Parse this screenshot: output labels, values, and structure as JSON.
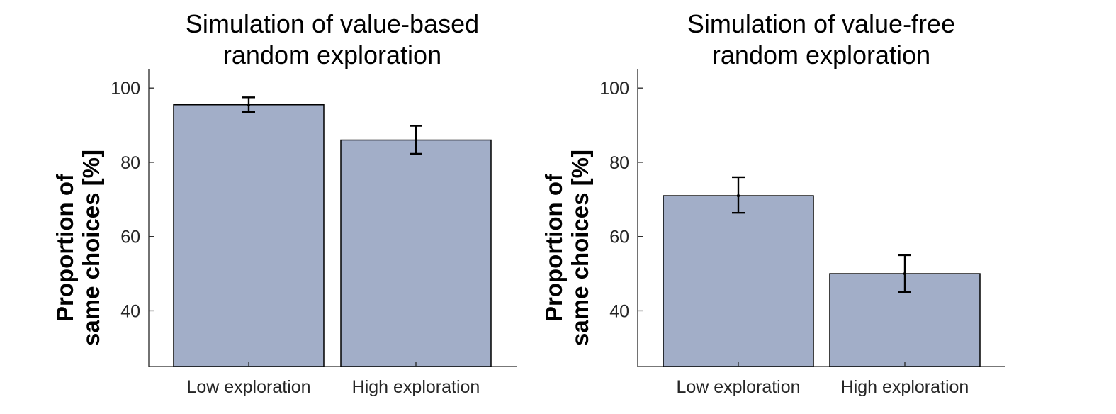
{
  "chart_data": [
    {
      "type": "bar",
      "title": [
        "Simulation of value-based",
        "random exploration"
      ],
      "ylabel": [
        "Proportion of",
        "same choices [%]"
      ],
      "xlabel": "",
      "categories": [
        "Low exploration",
        "High exploration"
      ],
      "values": [
        95.5,
        86
      ],
      "error_low": [
        93.5,
        82.3
      ],
      "error_high": [
        97.5,
        89.8
      ],
      "ylim": [
        25,
        105
      ],
      "yticks": [
        40,
        60,
        80,
        100
      ],
      "grid": false,
      "colors": {
        "bar": "#a2aec8",
        "edge": "#000000"
      }
    },
    {
      "type": "bar",
      "title": [
        "Simulation of value-free",
        "random exploration"
      ],
      "ylabel": [
        "Proportion of",
        "same choices [%]"
      ],
      "xlabel": "",
      "categories": [
        "Low exploration",
        "High exploration"
      ],
      "values": [
        71,
        50
      ],
      "error_low": [
        66.4,
        45
      ],
      "error_high": [
        76,
        55
      ],
      "ylim": [
        25,
        105
      ],
      "yticks": [
        40,
        60,
        80,
        100
      ],
      "grid": false,
      "colors": {
        "bar": "#a2aec8",
        "edge": "#000000"
      }
    }
  ]
}
